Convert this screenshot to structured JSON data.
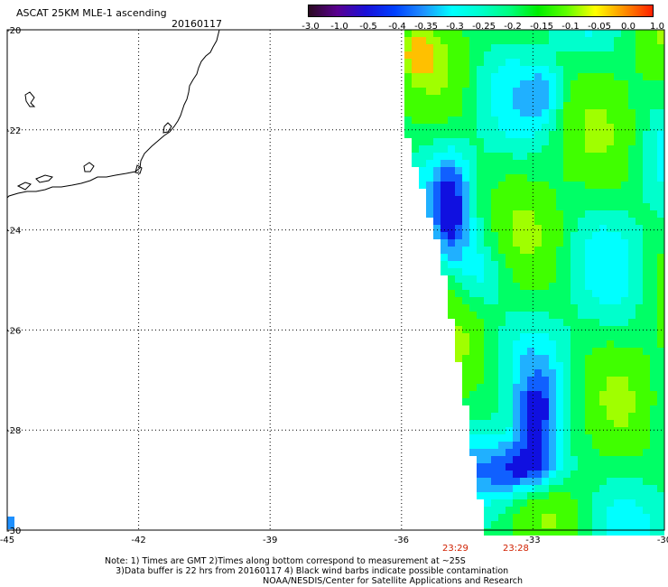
{
  "header": {
    "title": "ASCAT 25KM MLE-1 ascending",
    "date": "20160117"
  },
  "colorbar": {
    "labels": [
      "-3.0",
      "-1.0",
      "-0.5",
      "-0.4",
      "-0.35",
      "-0.3",
      "-0.25",
      "-0.2",
      "-0.15",
      "-0.1",
      "-0.05",
      "0.0",
      "1.0"
    ],
    "colors": [
      "#2a0a20",
      "#5a0090",
      "#1a10d8",
      "#0040ff",
      "#1e90ff",
      "#00ffff",
      "#00ffcc",
      "#00ff80",
      "#00ee00",
      "#60ff00",
      "#ffff00",
      "#ff9000",
      "#ff2000"
    ]
  },
  "axes": {
    "lat_labels": [
      "-20",
      "-22",
      "-24",
      "-26",
      "-28",
      "-30"
    ],
    "lon_labels": [
      "-45",
      "-42",
      "-39",
      "-36",
      "-33",
      "-30"
    ]
  },
  "times": [
    "23:29",
    "23:28"
  ],
  "notes": {
    "line1": "Note: 1) Times are GMT 2)Times along bottom correspond to measurement at ~25S",
    "line2": "3)Data buffer is 22 hrs from 20160117 4) Black wind barbs indicate possible contamination",
    "line3": "NOAA/NESDIS/Center for Satellite Applications and Research"
  }
}
